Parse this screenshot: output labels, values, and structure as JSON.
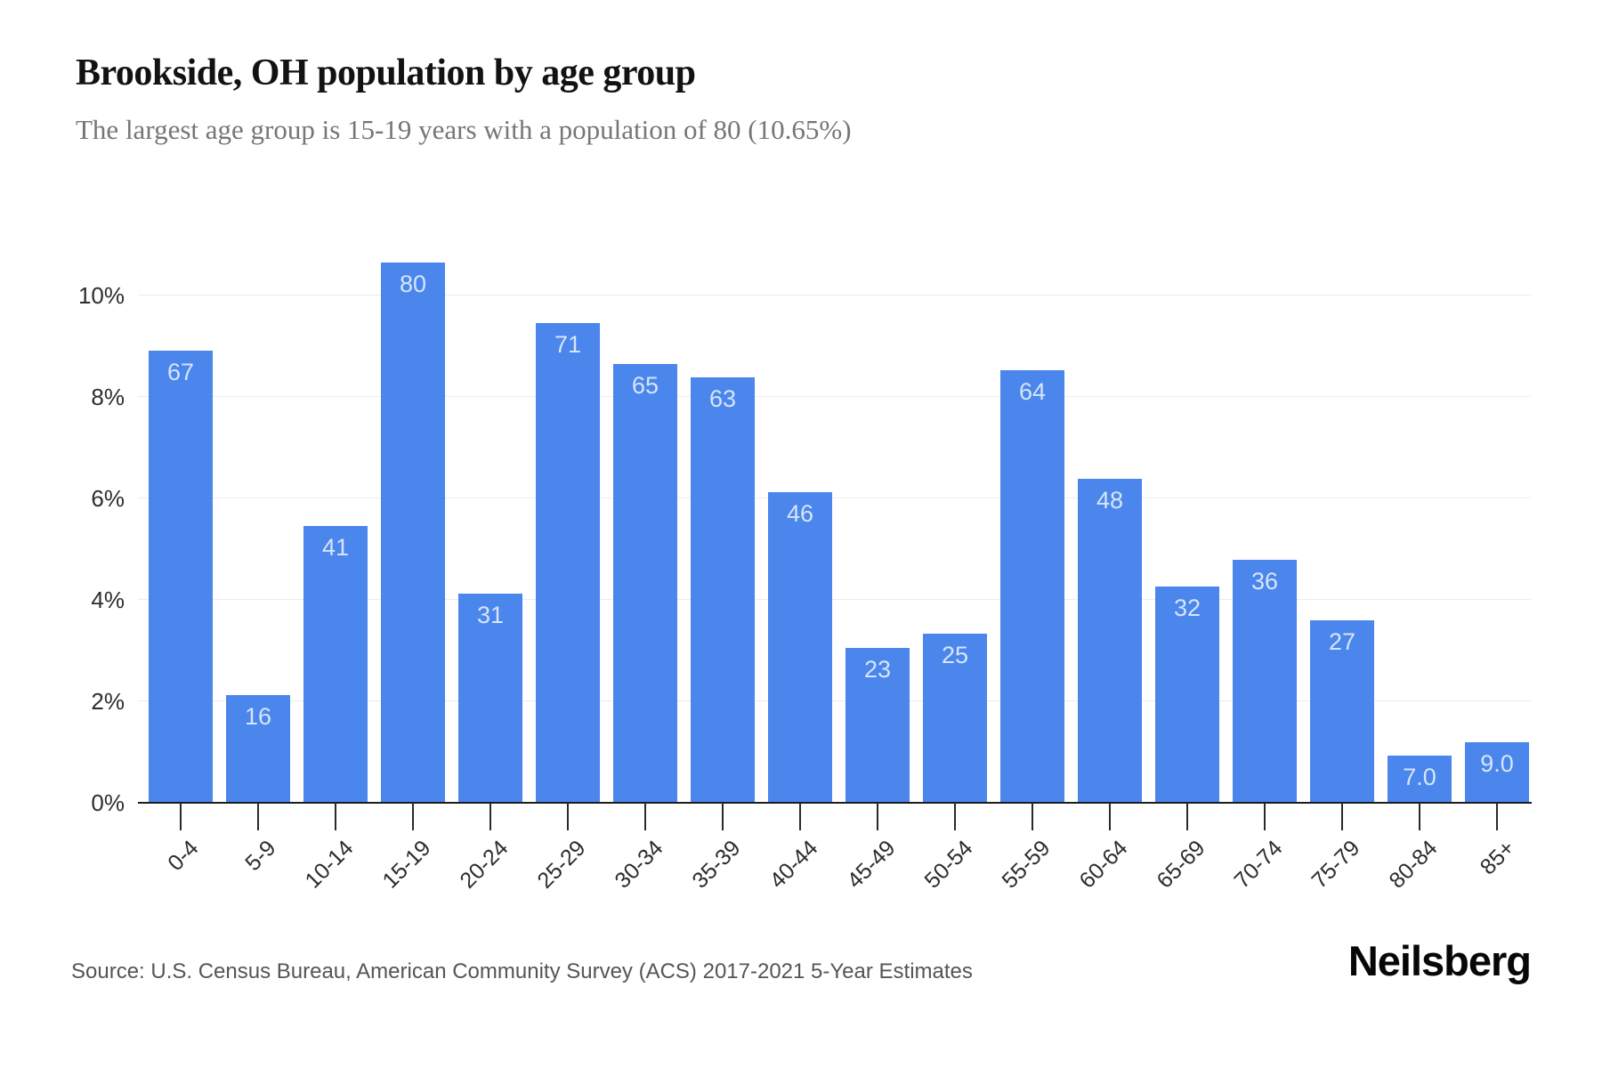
{
  "header": {
    "title": "Brookside, OH population by age group",
    "subtitle": "The largest age group is 15-19 years with a population of 80 (10.65%)"
  },
  "chart_data": {
    "type": "bar",
    "title": "Brookside, OH population by age group",
    "categories": [
      "0-4",
      "5-9",
      "10-14",
      "15-19",
      "20-24",
      "25-29",
      "30-34",
      "35-39",
      "40-44",
      "45-49",
      "50-54",
      "55-59",
      "60-64",
      "65-69",
      "70-74",
      "75-79",
      "80-84",
      "85+"
    ],
    "values": [
      67,
      16,
      41,
      80,
      31,
      71,
      65,
      63,
      46,
      23,
      25,
      64,
      48,
      32,
      36,
      27,
      7,
      9
    ],
    "value_labels": [
      "67",
      "16",
      "41",
      "80",
      "31",
      "71",
      "65",
      "63",
      "46",
      "23",
      "25",
      "64",
      "48",
      "32",
      "36",
      "27",
      "7.0",
      "9.0"
    ],
    "percents": [
      8.92,
      2.13,
      5.46,
      10.65,
      4.13,
      9.45,
      8.65,
      8.39,
      6.12,
      3.06,
      3.33,
      8.52,
      6.39,
      4.26,
      4.79,
      3.59,
      0.93,
      1.2
    ],
    "xlabel": "",
    "ylabel": "",
    "y_tick_labels": [
      "0%",
      "2%",
      "4%",
      "6%",
      "8%",
      "10%"
    ],
    "y_ticks_percent": [
      0,
      2,
      4,
      6,
      8,
      10
    ],
    "ylim": [
      0,
      10.65
    ],
    "grid": "horizontal",
    "legend": "none",
    "bar_color": "#4a86ec",
    "bar_label_color": "#d7e5fa"
  },
  "footer": {
    "source": "Source: U.S. Census Bureau, American Community Survey (ACS) 2017-2021 5-Year Estimates",
    "brand": "Neilsberg"
  }
}
